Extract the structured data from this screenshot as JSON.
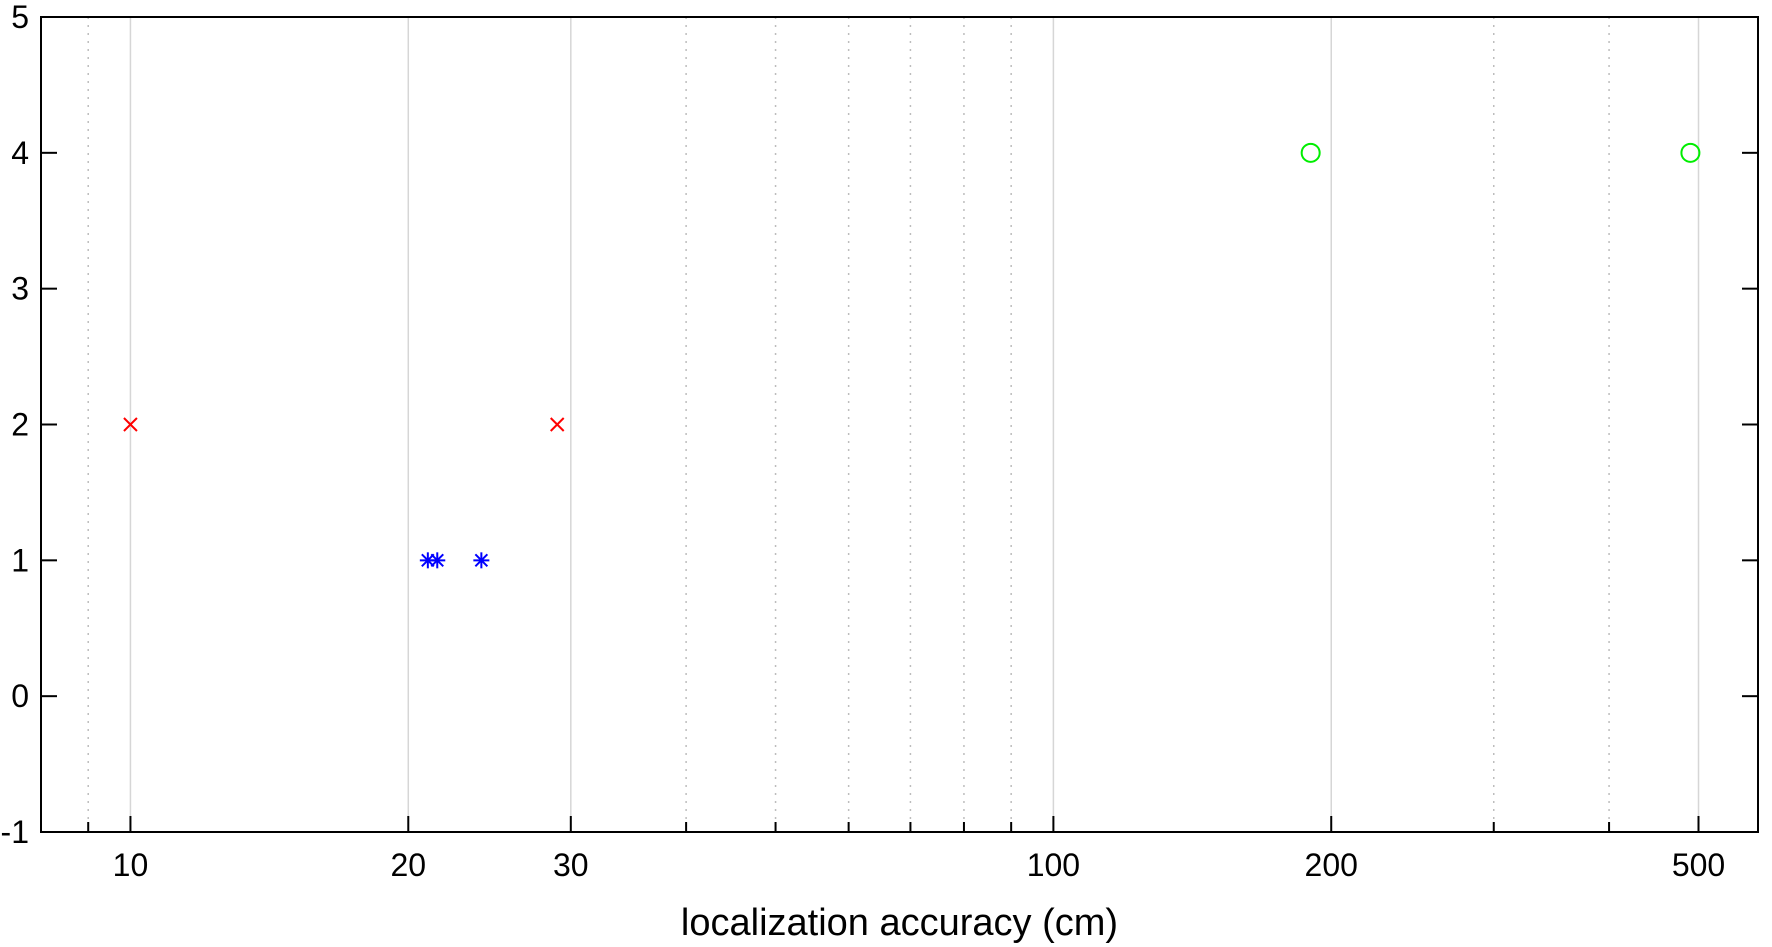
{
  "chart_data": {
    "type": "scatter",
    "title": "",
    "xlabel": "localization accuracy (cm)",
    "ylabel": "",
    "x_scale": "log",
    "xlim": [
      8,
      580
    ],
    "ylim": [
      -1,
      5
    ],
    "x_major_ticks": [
      10,
      20,
      30,
      100,
      200,
      500
    ],
    "x_minor_gridlines": [
      9,
      40,
      50,
      60,
      70,
      80,
      90,
      300,
      400
    ],
    "y_ticks": [
      -1,
      0,
      1,
      2,
      3,
      4,
      5
    ],
    "grid": true,
    "legend": "none",
    "series": [
      {
        "marker": "x",
        "color": "#ff0000",
        "points": [
          [
            10,
            2
          ],
          [
            29,
            2
          ]
        ]
      },
      {
        "marker": "asterisk",
        "color": "#0000ff",
        "points": [
          [
            21,
            1
          ],
          [
            21.5,
            1
          ],
          [
            24,
            1
          ]
        ]
      },
      {
        "marker": "circle",
        "color": "#00ee00",
        "points": [
          [
            190,
            4
          ],
          [
            490,
            4
          ]
        ]
      }
    ]
  }
}
